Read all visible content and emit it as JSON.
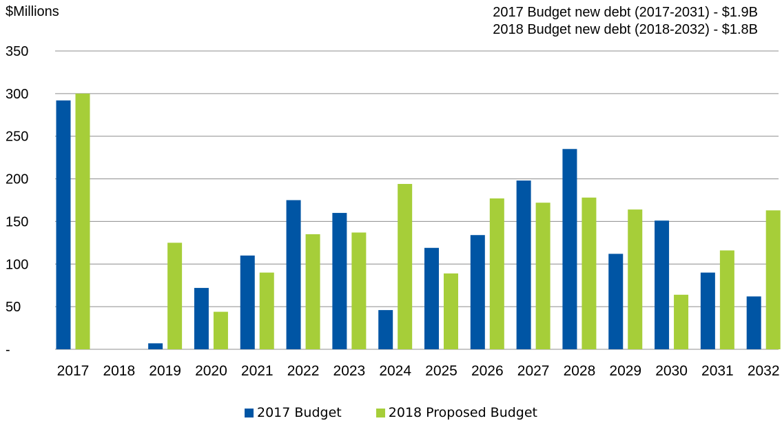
{
  "chart_data": {
    "type": "bar",
    "title": "",
    "unit_label": "$Millions",
    "annotations": [
      "2017 Budget new debt (2017-2031) - $1.9B",
      "2018 Budget new debt (2018-2032) - $1.8B"
    ],
    "categories": [
      "2017",
      "2018",
      "2019",
      "2020",
      "2021",
      "2022",
      "2023",
      "2024",
      "2025",
      "2026",
      "2027",
      "2028",
      "2029",
      "2030",
      "2031",
      "2032"
    ],
    "series": [
      {
        "name": "2017 Budget",
        "color": "#0055a4",
        "values": [
          292,
          0,
          7,
          72,
          110,
          175,
          160,
          46,
          119,
          134,
          198,
          235,
          112,
          151,
          90,
          62
        ]
      },
      {
        "name": "2018 Proposed Budget",
        "color": "#a6ce39",
        "values": [
          300,
          0,
          125,
          44,
          90,
          135,
          137,
          194,
          89,
          177,
          172,
          178,
          164,
          64,
          116,
          163
        ]
      }
    ],
    "ylim": [
      0,
      350
    ],
    "yticks": [
      0,
      50,
      100,
      150,
      200,
      250,
      300,
      350
    ],
    "ytick_labels": [
      "-",
      "50",
      "100",
      "150",
      "200",
      "250",
      "300",
      "350"
    ],
    "grid": true,
    "legend_position": "bottom"
  }
}
